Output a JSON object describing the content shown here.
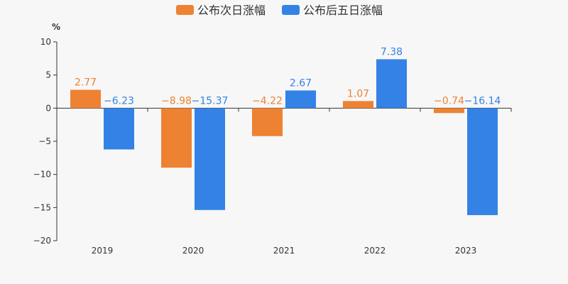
{
  "chart_data": {
    "type": "bar",
    "categories": [
      "2019",
      "2020",
      "2021",
      "2022",
      "2023"
    ],
    "series": [
      {
        "name": "公布次日涨幅",
        "color": "#ee8233",
        "values": [
          2.77,
          -8.98,
          -4.22,
          1.07,
          -0.74
        ],
        "labels": [
          "2.77",
          "−8.98",
          "−4.22",
          "1.07",
          "−0.74"
        ]
      },
      {
        "name": "公布后五日涨幅",
        "color": "#3482e6",
        "values": [
          -6.23,
          -15.37,
          2.67,
          7.38,
          -16.14
        ],
        "labels": [
          "−6.23",
          "−15.37",
          "2.67",
          "7.38",
          "−16.14"
        ]
      }
    ],
    "yunit": "%",
    "ylim": [
      -20,
      10
    ],
    "yticks": [
      10,
      5,
      0,
      -5,
      -10,
      -15,
      -20
    ],
    "ytick_labels": [
      "10",
      "5",
      "0",
      "−5",
      "−10",
      "−15",
      "−20"
    ],
    "grid": false,
    "legend": "top-center"
  }
}
